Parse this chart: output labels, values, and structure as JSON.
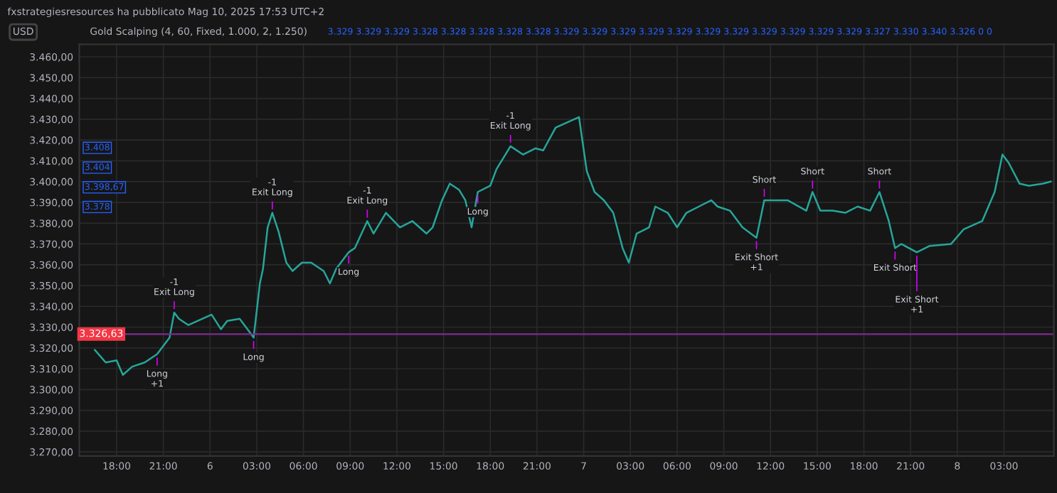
{
  "chart_data": {
    "type": "line",
    "title": "fxstrategiesresources ha pubblicato Mag 10, 2025 17:53 UTC+2",
    "subtitle": "Gold Scalping (4, 60, Fixed, 1.000, 2, 1.250)",
    "ylabel": "USD",
    "x": [
      "2025-05-05T16:36",
      "2025-05-05T17:18",
      "2025-05-05T18:00",
      "2025-05-05T18:24",
      "2025-05-05T19:00",
      "2025-05-05T19:48",
      "2025-05-05T20:36",
      "2025-05-05T21:24",
      "2025-05-05T21:42",
      "2025-05-05T22:00",
      "2025-05-05T22:36",
      "2025-05-06T00:06",
      "2025-05-06T00:42",
      "2025-05-06T01:06",
      "2025-05-06T01:54",
      "2025-05-06T02:12",
      "2025-05-06T02:30",
      "2025-05-06T02:48",
      "2025-05-06T03:00",
      "2025-05-06T03:12",
      "2025-05-06T03:24",
      "2025-05-06T03:42",
      "2025-05-06T04:00",
      "2025-05-06T04:24",
      "2025-05-06T04:54",
      "2025-05-06T05:18",
      "2025-05-06T05:54",
      "2025-05-06T06:30",
      "2025-05-06T07:18",
      "2025-05-06T07:42",
      "2025-05-06T08:06",
      "2025-05-06T08:54",
      "2025-05-06T09:18",
      "2025-05-06T10:06",
      "2025-05-06T10:30",
      "2025-05-06T11:18",
      "2025-05-06T12:12",
      "2025-05-06T13:00",
      "2025-05-06T13:54",
      "2025-05-06T14:18",
      "2025-05-06T14:54",
      "2025-05-06T15:24",
      "2025-05-06T16:00",
      "2025-05-06T16:24",
      "2025-05-06T16:48",
      "2025-05-06T17:12",
      "2025-05-06T18:00",
      "2025-05-06T18:24",
      "2025-05-06T19:18",
      "2025-05-06T20:06",
      "2025-05-06T20:54",
      "2025-05-06T21:24",
      "2025-05-06T22:12",
      "2025-05-06T23:42",
      "2025-05-07T00:12",
      "2025-05-07T00:42",
      "2025-05-07T01:18",
      "2025-05-07T01:54",
      "2025-05-07T02:30",
      "2025-05-07T02:54",
      "2025-05-07T03:24",
      "2025-05-07T04:12",
      "2025-05-07T04:36",
      "2025-05-07T05:24",
      "2025-05-07T06:00",
      "2025-05-07T06:36",
      "2025-05-07T07:24",
      "2025-05-07T08:12",
      "2025-05-07T08:36",
      "2025-05-07T09:24",
      "2025-05-07T10:12",
      "2025-05-07T11:06",
      "2025-05-07T11:36",
      "2025-05-07T12:12",
      "2025-05-07T13:06",
      "2025-05-07T14:18",
      "2025-05-07T14:42",
      "2025-05-07T15:12",
      "2025-05-07T16:00",
      "2025-05-07T16:48",
      "2025-05-07T17:36",
      "2025-05-07T18:24",
      "2025-05-07T19:00",
      "2025-05-07T19:36",
      "2025-05-07T20:00",
      "2025-05-07T20:24",
      "2025-05-07T21:24",
      "2025-05-07T22:12",
      "2025-05-07T23:36",
      "2025-05-08T00:24",
      "2025-05-08T01:36",
      "2025-05-08T02:24",
      "2025-05-08T02:54",
      "2025-05-08T03:18",
      "2025-05-08T04:00",
      "2025-05-08T04:36",
      "2025-05-08T05:30",
      "2025-05-08T06:00"
    ],
    "series": [
      {
        "color": "#26a69a",
        "values": [
          3319,
          3313,
          3314,
          3307,
          3311,
          3313,
          3317,
          3325,
          3337,
          3334,
          3331,
          3336,
          3329,
          3333,
          3334,
          3331,
          3328,
          3325,
          3338,
          3351,
          3358,
          3378,
          3385,
          3376,
          3361,
          3357,
          3361,
          3361,
          3357,
          3351,
          3358,
          3366,
          3368,
          3381,
          3375,
          3385,
          3378,
          3381,
          3375,
          3378,
          3391,
          3399,
          3396,
          3391,
          3378,
          3395,
          3398,
          3406,
          3417,
          3413,
          3416,
          3415,
          3426,
          3431,
          3405,
          3395,
          3391,
          3385,
          3368,
          3361,
          3375,
          3378,
          3388,
          3385,
          3378,
          3385,
          3388,
          3391,
          3388,
          3386,
          3378,
          3373,
          3391,
          3391,
          3391,
          3386,
          3395,
          3386,
          3386,
          3385,
          3388,
          3386,
          3395,
          3381,
          3368,
          3370,
          3366,
          3369,
          3370,
          3377,
          3381,
          3395,
          3413,
          3409,
          3399,
          3398,
          3399,
          3400
        ]
      }
    ],
    "xlim": [
      "2025-05-05T15:36",
      "2025-05-08T06:12"
    ],
    "xticks": [
      {
        "value": "2025-05-05T18:00",
        "label": "18:00"
      },
      {
        "value": "2025-05-05T21:00",
        "label": "21:00"
      },
      {
        "value": "2025-05-06T00:00",
        "label": "6"
      },
      {
        "value": "2025-05-06T03:00",
        "label": "03:00"
      },
      {
        "value": "2025-05-06T06:00",
        "label": "06:00"
      },
      {
        "value": "2025-05-06T09:00",
        "label": "09:00"
      },
      {
        "value": "2025-05-06T12:00",
        "label": "12:00"
      },
      {
        "value": "2025-05-06T15:00",
        "label": "15:00"
      },
      {
        "value": "2025-05-06T18:00",
        "label": "18:00"
      },
      {
        "value": "2025-05-06T21:00",
        "label": "21:00"
      },
      {
        "value": "2025-05-07T00:00",
        "label": "7"
      },
      {
        "value": "2025-05-07T03:00",
        "label": "03:00"
      },
      {
        "value": "2025-05-07T06:00",
        "label": "06:00"
      },
      {
        "value": "2025-05-07T09:00",
        "label": "09:00"
      },
      {
        "value": "2025-05-07T12:00",
        "label": "12:00"
      },
      {
        "value": "2025-05-07T15:00",
        "label": "15:00"
      },
      {
        "value": "2025-05-07T18:00",
        "label": "18:00"
      },
      {
        "value": "2025-05-07T21:00",
        "label": "21:00"
      },
      {
        "value": "2025-05-08T00:00",
        "label": "8"
      },
      {
        "value": "2025-05-08T03:00",
        "label": "03:00"
      }
    ],
    "ylim": [
      3268,
      3466
    ],
    "yticks": [
      {
        "value": 3270,
        "label": "3.270,00"
      },
      {
        "value": 3280,
        "label": "3.280,00"
      },
      {
        "value": 3290,
        "label": "3.290,00"
      },
      {
        "value": 3300,
        "label": "3.300,00"
      },
      {
        "value": 3310,
        "label": "3.310,00"
      },
      {
        "value": 3320,
        "label": "3.320,00"
      },
      {
        "value": 3330,
        "label": "3.330,00"
      },
      {
        "value": 3340,
        "label": "3.340,00"
      },
      {
        "value": 3350,
        "label": "3.350,00"
      },
      {
        "value": 3360,
        "label": "3.360,00"
      },
      {
        "value": 3370,
        "label": "3.370,00"
      },
      {
        "value": 3380,
        "label": "3.380,00"
      },
      {
        "value": 3390,
        "label": "3.390,00"
      },
      {
        "value": 3400,
        "label": "3.400,00"
      },
      {
        "value": 3410,
        "label": "3.410,00"
      },
      {
        "value": 3420,
        "label": "3.420,00"
      },
      {
        "value": 3430,
        "label": "3.430,00"
      },
      {
        "value": 3440,
        "label": "3.440,00"
      },
      {
        "value": 3450,
        "label": "3.450,00"
      },
      {
        "value": 3460,
        "label": "3.460,00"
      }
    ],
    "grid": true,
    "ref_lines": [
      {
        "axis": "y",
        "value": 3326.63,
        "label": "3.326,63",
        "color": "#7b2d8e"
      }
    ],
    "annotations": [
      "3.329 3.329 3.329 3.328 3.328 3.328 3.328 3.328 3.329 3.329 3.329 3.329 3.329 3.329 3.329 3.329 3.329 3.329 3.329 3.327 3.330 3.340 3.326 0 0",
      "3.408",
      "3.404",
      "3.398,67",
      "3.378",
      {
        "text": "-1\nExit Long",
        "x": "2025-05-05T21:42",
        "y": 3337
      },
      {
        "text": "-1\nExit Long",
        "x": "2025-05-06T04:00",
        "y": 3385
      },
      {
        "text": "-1\nExit Long",
        "x": "2025-05-06T10:06",
        "y": 3381
      },
      {
        "text": "-1\nExit Long",
        "x": "2025-05-06T19:18",
        "y": 3417
      },
      {
        "text": "Long\n+1",
        "x": "2025-05-05T20:36",
        "y": 3317
      },
      {
        "text": "Long",
        "x": "2025-05-06T02:48",
        "y": 3325
      },
      {
        "text": "Long",
        "x": "2025-05-06T08:54",
        "y": 3366
      },
      {
        "text": "Long",
        "x": "2025-05-06T17:12",
        "y": 3395
      },
      {
        "text": "Short",
        "x": "2025-05-07T11:36",
        "y": 3391
      },
      {
        "text": "Exit Short\n+1",
        "x": "2025-05-07T11:06",
        "y": 3373
      },
      {
        "text": "Short",
        "x": "2025-05-07T14:42",
        "y": 3395
      },
      {
        "text": "Short",
        "x": "2025-05-07T19:00",
        "y": 3395
      },
      {
        "text": "Exit Short",
        "x": "2025-05-07T20:00",
        "y": 3368
      },
      {
        "text": "Exit Short\n+1",
        "x": "2025-05-07T21:24",
        "y": 3366
      }
    ],
    "line_style": "solid",
    "marker": "none",
    "legend": false
  }
}
